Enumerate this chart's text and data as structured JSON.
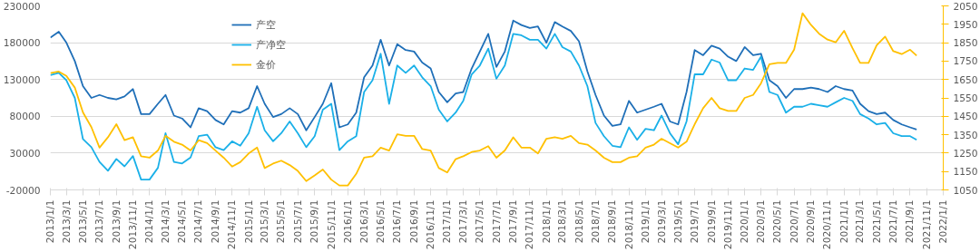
{
  "chart_data": {
    "type": "line",
    "x": [
      "2013-01",
      "2013-02",
      "2013-03",
      "2013-04",
      "2013-05",
      "2013-06",
      "2013-07",
      "2013-08",
      "2013-09",
      "2013-10",
      "2013-11",
      "2013-12",
      "2014-01",
      "2014-02",
      "2014-03",
      "2014-04",
      "2014-05",
      "2014-06",
      "2014-07",
      "2014-08",
      "2014-09",
      "2014-10",
      "2014-11",
      "2014-12",
      "2015-01",
      "2015-02",
      "2015-03",
      "2015-04",
      "2015-05",
      "2015-06",
      "2015-07",
      "2015-08",
      "2015-09",
      "2015-10",
      "2015-11",
      "2015-12",
      "2016-01",
      "2016-02",
      "2016-03",
      "2016-04",
      "2016-05",
      "2016-06",
      "2016-07",
      "2016-08",
      "2016-09",
      "2016-10",
      "2016-11",
      "2016-12",
      "2017-01",
      "2017-02",
      "2017-03",
      "2017-04",
      "2017-05",
      "2017-06",
      "2017-07",
      "2017-08",
      "2017-09",
      "2017-10",
      "2017-11",
      "2017-12",
      "2018-01",
      "2018-02",
      "2018-03",
      "2018-04",
      "2018-05",
      "2018-06",
      "2018-07",
      "2018-08",
      "2018-09",
      "2018-10",
      "2018-11",
      "2018-12",
      "2019-01",
      "2019-02",
      "2019-03",
      "2019-04",
      "2019-05",
      "2019-06",
      "2019-07",
      "2019-08",
      "2019-09",
      "2019-10",
      "2019-11",
      "2019-12",
      "2020-01",
      "2020-02",
      "2020-03",
      "2020-04",
      "2020-05",
      "2020-06",
      "2020-07",
      "2020-08",
      "2020-09",
      "2020-10",
      "2020-11",
      "2020-12",
      "2021-01",
      "2021-02",
      "2021-03",
      "2021-04",
      "2021-05",
      "2021-06",
      "2021-07",
      "2021-08",
      "2021-09",
      "2021-09-25"
    ],
    "series": [
      {
        "name": "产空",
        "color": "#1f6fb8",
        "values": [
          187000,
          195000,
          180000,
          155000,
          121000,
          105000,
          109000,
          105000,
          103000,
          107000,
          117000,
          83000,
          83000,
          97000,
          109000,
          81000,
          77000,
          65000,
          91000,
          87000,
          75000,
          69000,
          87000,
          85000,
          91000,
          121000,
          97000,
          79000,
          83000,
          91000,
          83000,
          61000,
          79000,
          97000,
          125000,
          65000,
          69000,
          85000,
          133000,
          149000,
          184000,
          149000,
          178000,
          170000,
          168000,
          153000,
          145000,
          113000,
          99000,
          111000,
          113000,
          145000,
          168000,
          192000,
          147000,
          168000,
          210000,
          204000,
          200000,
          202000,
          180000,
          208000,
          202000,
          196000,
          182000,
          141000,
          109000,
          81000,
          67000,
          69000,
          101000,
          85000,
          89000,
          93000,
          97000,
          73000,
          69000,
          113000,
          170000,
          163000,
          176000,
          172000,
          161000,
          155000,
          174000,
          163000,
          165000,
          129000,
          121000,
          105000,
          117000,
          117000,
          119000,
          117000,
          113000,
          121000,
          117000,
          115000,
          97000,
          87000,
          83000,
          85000,
          75000,
          69000,
          65000,
          62000
        ]
      },
      {
        "name": "产净空",
        "color": "#1ab0e8",
        "values": [
          136000,
          139000,
          129000,
          105000,
          49000,
          38000,
          18000,
          6000,
          22000,
          12000,
          26000,
          -6000,
          -6000,
          10000,
          57000,
          18000,
          16000,
          24000,
          53000,
          55000,
          38000,
          34000,
          46000,
          40000,
          57000,
          93000,
          61000,
          46000,
          57000,
          73000,
          57000,
          38000,
          53000,
          89000,
          97000,
          34000,
          46000,
          53000,
          113000,
          129000,
          165000,
          97000,
          149000,
          139000,
          149000,
          133000,
          121000,
          89000,
          73000,
          85000,
          101000,
          137000,
          149000,
          172000,
          131000,
          149000,
          192000,
          190000,
          184000,
          184000,
          172000,
          192000,
          174000,
          168000,
          149000,
          121000,
          71000,
          53000,
          40000,
          38000,
          65000,
          48000,
          63000,
          61000,
          81000,
          57000,
          42000,
          73000,
          137000,
          137000,
          157000,
          153000,
          129000,
          129000,
          145000,
          143000,
          161000,
          113000,
          109000,
          85000,
          93000,
          93000,
          97000,
          95000,
          93000,
          99000,
          105000,
          101000,
          83000,
          77000,
          69000,
          71000,
          57000,
          53000,
          53000,
          48000
        ]
      },
      {
        "name": "金价",
        "color": "#ffc000",
        "axis": "y2",
        "values": [
          1685,
          1693,
          1669,
          1606,
          1471,
          1391,
          1280,
          1336,
          1407,
          1320,
          1336,
          1233,
          1225,
          1264,
          1344,
          1312,
          1296,
          1264,
          1320,
          1304,
          1264,
          1225,
          1177,
          1201,
          1248,
          1280,
          1169,
          1193,
          1209,
          1185,
          1153,
          1098,
          1129,
          1161,
          1106,
          1074,
          1074,
          1137,
          1225,
          1233,
          1280,
          1264,
          1352,
          1344,
          1344,
          1272,
          1264,
          1169,
          1145,
          1217,
          1233,
          1256,
          1264,
          1288,
          1225,
          1264,
          1336,
          1280,
          1280,
          1248,
          1328,
          1336,
          1328,
          1344,
          1304,
          1296,
          1264,
          1225,
          1201,
          1201,
          1225,
          1233,
          1280,
          1296,
          1328,
          1304,
          1280,
          1312,
          1407,
          1494,
          1550,
          1494,
          1479,
          1479,
          1550,
          1566,
          1629,
          1733,
          1740,
          1740,
          1812,
          2010,
          1947,
          1899,
          1867,
          1852,
          1915,
          1820,
          1740,
          1740,
          1836,
          1883,
          1804,
          1788,
          1812,
          1780
        ]
      }
    ],
    "xlim": [
      "2013-01-01",
      "2022-01-01"
    ],
    "xticks": [
      {
        "value": "2013-01-01",
        "label": "2013/1/1"
      },
      {
        "value": "2013-03-01",
        "label": "2013/3/1"
      },
      {
        "value": "2013-05-01",
        "label": "2013/5/1"
      },
      {
        "value": "2013-07-01",
        "label": "2013/7/1"
      },
      {
        "value": "2013-09-01",
        "label": "2013/9/1"
      },
      {
        "value": "2013-11-01",
        "label": "2013/11/1"
      },
      {
        "value": "2014-01-01",
        "label": "2014/1/1"
      },
      {
        "value": "2014-03-01",
        "label": "2014/3/1"
      },
      {
        "value": "2014-05-01",
        "label": "2014/5/1"
      },
      {
        "value": "2014-07-01",
        "label": "2014/7/1"
      },
      {
        "value": "2014-09-01",
        "label": "2014/9/1"
      },
      {
        "value": "2014-11-01",
        "label": "2014/11/1"
      },
      {
        "value": "2015-01-01",
        "label": "2015/1/1"
      },
      {
        "value": "2015-03-01",
        "label": "2015/3/1"
      },
      {
        "value": "2015-05-01",
        "label": "2015/5/1"
      },
      {
        "value": "2015-07-01",
        "label": "2015/7/1"
      },
      {
        "value": "2015-09-01",
        "label": "2015/9/1"
      },
      {
        "value": "2015-11-01",
        "label": "2015/11/1"
      },
      {
        "value": "2016-01-01",
        "label": "2016/1/1"
      },
      {
        "value": "2016-03-01",
        "label": "2016/3/1"
      },
      {
        "value": "2016-05-01",
        "label": "2016/5/1"
      },
      {
        "value": "2016-07-01",
        "label": "2016/7/1"
      },
      {
        "value": "2016-09-01",
        "label": "2016/9/1"
      },
      {
        "value": "2016-11-01",
        "label": "2016/11/1"
      },
      {
        "value": "2017-01-01",
        "label": "2017/1/1"
      },
      {
        "value": "2017-03-01",
        "label": "2017/3/1"
      },
      {
        "value": "2017-05-01",
        "label": "2017/5/1"
      },
      {
        "value": "2017-07-01",
        "label": "2017/7/1"
      },
      {
        "value": "2017-09-01",
        "label": "2017/9/1"
      },
      {
        "value": "2017-11-01",
        "label": "2017/11/1"
      },
      {
        "value": "2018-01-01",
        "label": "2018/1/1"
      },
      {
        "value": "2018-03-01",
        "label": "2018/3/1"
      },
      {
        "value": "2018-05-01",
        "label": "2018/5/1"
      },
      {
        "value": "2018-07-01",
        "label": "2018/7/1"
      },
      {
        "value": "2018-09-01",
        "label": "2018/9/1"
      },
      {
        "value": "2018-11-01",
        "label": "2018/11/1"
      },
      {
        "value": "2019-01-01",
        "label": "2019/1/1"
      },
      {
        "value": "2019-03-01",
        "label": "2019/3/1"
      },
      {
        "value": "2019-05-01",
        "label": "2019/5/1"
      },
      {
        "value": "2019-07-01",
        "label": "2019/7/1"
      },
      {
        "value": "2019-09-01",
        "label": "2019/9/1"
      },
      {
        "value": "2019-11-01",
        "label": "2019/11/1"
      },
      {
        "value": "2020-01-01",
        "label": "2020/1/1"
      },
      {
        "value": "2020-03-01",
        "label": "2020/3/1"
      },
      {
        "value": "2020-05-01",
        "label": "2020/5/1"
      },
      {
        "value": "2020-07-01",
        "label": "2020/7/1"
      },
      {
        "value": "2020-09-01",
        "label": "2020/9/1"
      },
      {
        "value": "2020-11-01",
        "label": "2020/11/1"
      },
      {
        "value": "2021-01-01",
        "label": "2021/1/1"
      },
      {
        "value": "2021-03-01",
        "label": "2021/3/1"
      },
      {
        "value": "2021-05-01",
        "label": "2021/5/1"
      },
      {
        "value": "2021-07-01",
        "label": "2021/7/1"
      },
      {
        "value": "2021-09-01",
        "label": "2021/9/1"
      },
      {
        "value": "2021-11-01",
        "label": "2021/11/1"
      },
      {
        "value": "2022-01-01",
        "label": "2022/1/1"
      }
    ],
    "ylim": [
      -20000,
      230000
    ],
    "yticks": [
      -20000,
      30000,
      80000,
      130000,
      180000,
      230000
    ],
    "y2lim": [
      1050,
      2050
    ],
    "y2ticks": [
      1050,
      1150,
      1250,
      1350,
      1450,
      1550,
      1650,
      1750,
      1850,
      1950,
      2050
    ],
    "grid": "y",
    "legend": "top left",
    "marker": "none",
    "line_style": "solid"
  }
}
